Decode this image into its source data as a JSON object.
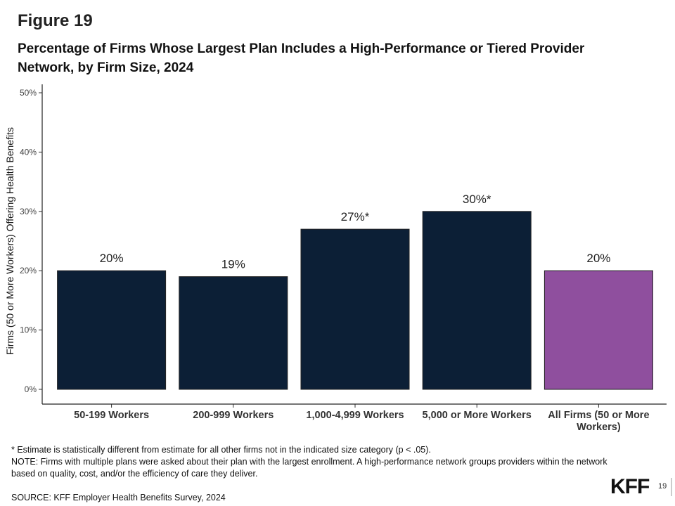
{
  "figure_label": "Figure 19",
  "title": "Percentage of Firms Whose Largest Plan Includes a High-Performance or Tiered Provider Network, by Firm Size, 2024",
  "chart_data": {
    "type": "bar",
    "ylabel": "Firms (50 or More Workers) Offering Health Benefits",
    "xlabel": "",
    "ylim": [
      0,
      50
    ],
    "y_ticks": [
      "0%",
      "10%",
      "20%",
      "30%",
      "40%",
      "50%"
    ],
    "y_tick_values": [
      0,
      10,
      20,
      30,
      40,
      50
    ],
    "categories": [
      "50-199 Workers",
      "200-999 Workers",
      "1,000-4,999 Workers",
      "5,000 or More Workers",
      "All Firms (50 or More Workers)"
    ],
    "category_lines": [
      [
        "50-199 Workers"
      ],
      [
        "200-999 Workers"
      ],
      [
        "1,000-4,999 Workers"
      ],
      [
        "5,000 or More Workers"
      ],
      [
        "All Firms (50 or More",
        "Workers)"
      ]
    ],
    "values": [
      20,
      19,
      27,
      30,
      20
    ],
    "data_labels": [
      "20%",
      "19%",
      "27%*",
      "30%*",
      "20%"
    ],
    "bar_colors": [
      "#0c1f36",
      "#0c1f36",
      "#0c1f36",
      "#0c1f36",
      "#8f4f9e"
    ],
    "grid": false,
    "legend": "none"
  },
  "footer": {
    "note_asterisk": "* Estimate is statistically different from estimate for all other firms not in the indicated size category (p < .05).",
    "note": "NOTE: Firms with multiple plans were asked about their plan with the largest enrollment.  A high-performance network groups providers within the network based on quality, cost, and/or the efficiency of care they deliver.",
    "source": "SOURCE: KFF Employer Health Benefits Survey, 2024"
  },
  "logo": "KFF",
  "page_number": "19"
}
